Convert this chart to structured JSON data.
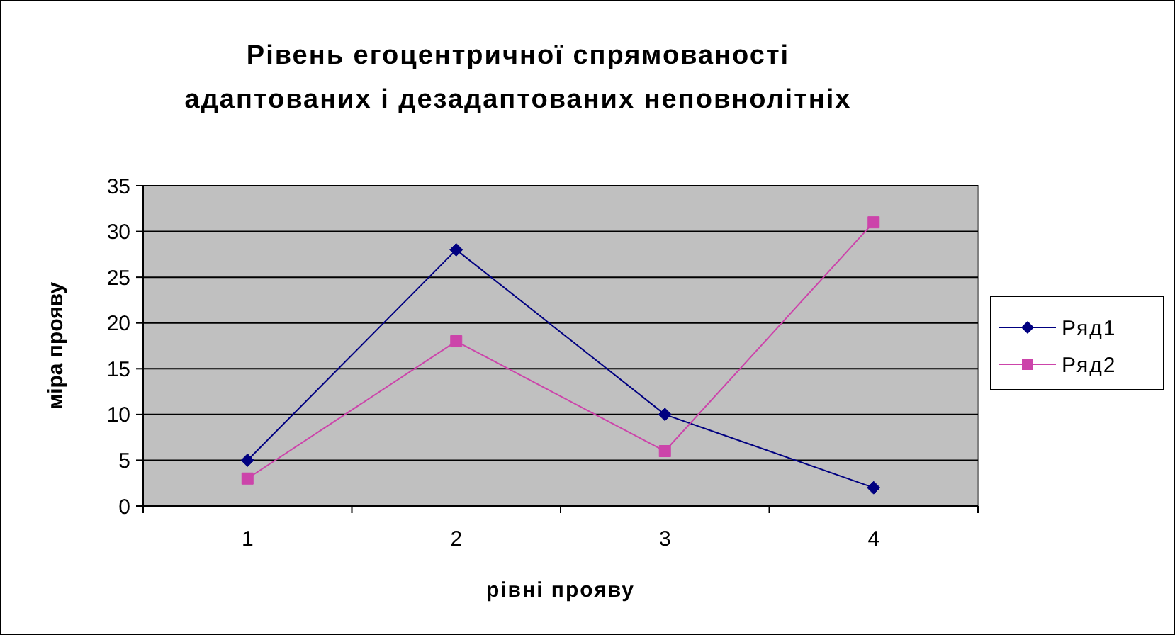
{
  "chart_data": {
    "type": "line",
    "title": "Рівень егоцентричної спрямованості\nадаптованих і дезадаптованих неповнолітніх",
    "xlabel": "рівні прояву",
    "ylabel": "міра прояву",
    "categories": [
      "1",
      "2",
      "3",
      "4"
    ],
    "series": [
      {
        "name": "Ряд1",
        "color": "#000080",
        "marker": "diamond",
        "values": [
          5,
          28,
          10,
          2
        ]
      },
      {
        "name": "Ряд2",
        "color": "#cc44aa",
        "marker": "square",
        "values": [
          3,
          18,
          6,
          31
        ]
      }
    ],
    "ylim": [
      0,
      35
    ],
    "yticks": [
      0,
      5,
      10,
      15,
      20,
      25,
      30,
      35
    ],
    "grid": "y",
    "legend": "right"
  }
}
